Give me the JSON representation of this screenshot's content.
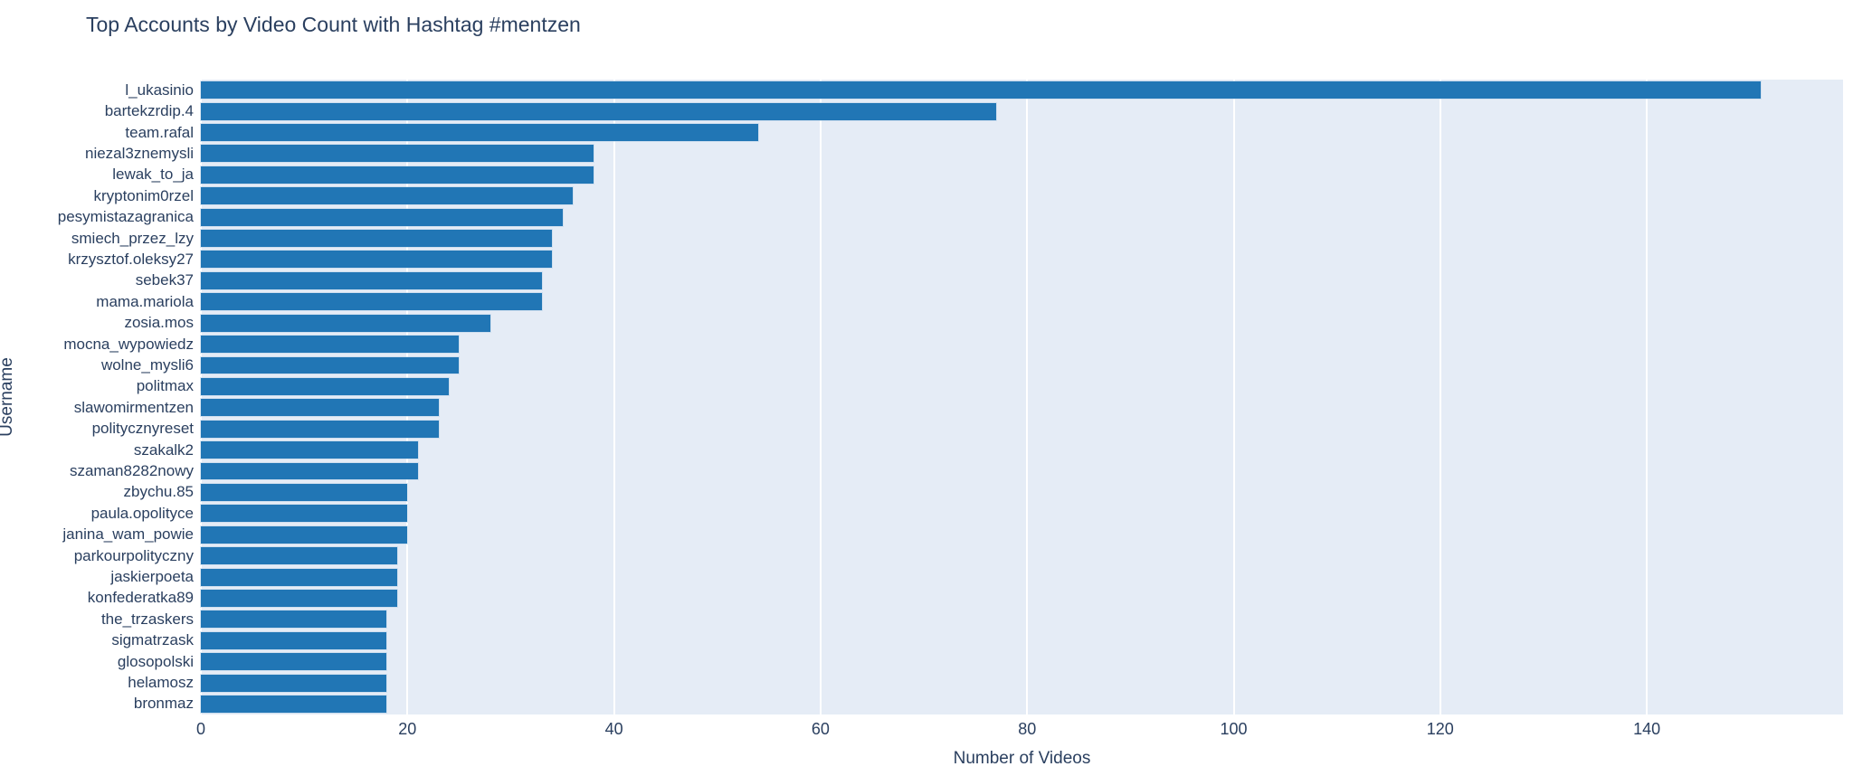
{
  "chart_data": {
    "type": "bar",
    "orientation": "horizontal",
    "title": "Top Accounts by Video Count with Hashtag #mentzen",
    "xlabel": "Number of Videos",
    "ylabel": "Username",
    "categories": [
      "l_ukasinio",
      "bartekzrdip.4",
      "team.rafal",
      "niezal3znemysli",
      "lewak_to_ja",
      "kryptonim0rzel",
      "pesymistazagranica",
      "smiech_przez_lzy",
      "krzysztof.oleksy27",
      "sebek37",
      "mama.mariola",
      "zosia.mos",
      "mocna_wypowiedz",
      "wolne_mysli6",
      "politmax",
      "slawomirmentzen",
      "politycznyreset",
      "szakalk2",
      "szaman8282nowy",
      "zbychu.85",
      "paula.opolityce",
      "janina_wam_powie",
      "parkourpolityczny",
      "jaskierpoeta",
      "konfederatka89",
      "the_trzaskers",
      "sigmatrzask",
      "glosopolski",
      "helamosz",
      "bronmaz"
    ],
    "values": [
      151,
      77,
      54,
      38,
      38,
      36,
      35,
      34,
      34,
      33,
      33,
      28,
      25,
      25,
      24,
      23,
      23,
      21,
      21,
      20,
      20,
      20,
      19,
      19,
      19,
      18,
      18,
      18,
      18,
      18
    ],
    "x_ticks": [
      0,
      20,
      40,
      60,
      80,
      100,
      120,
      140
    ],
    "xlim": [
      0,
      159
    ],
    "grid": "vertical-only",
    "legend": "none",
    "colors": {
      "bar": "#2176b5",
      "plot_background": "#e5ecf6",
      "gridline": "#ffffff",
      "text": "#2a3f5f",
      "paper": "#ffffff"
    }
  }
}
